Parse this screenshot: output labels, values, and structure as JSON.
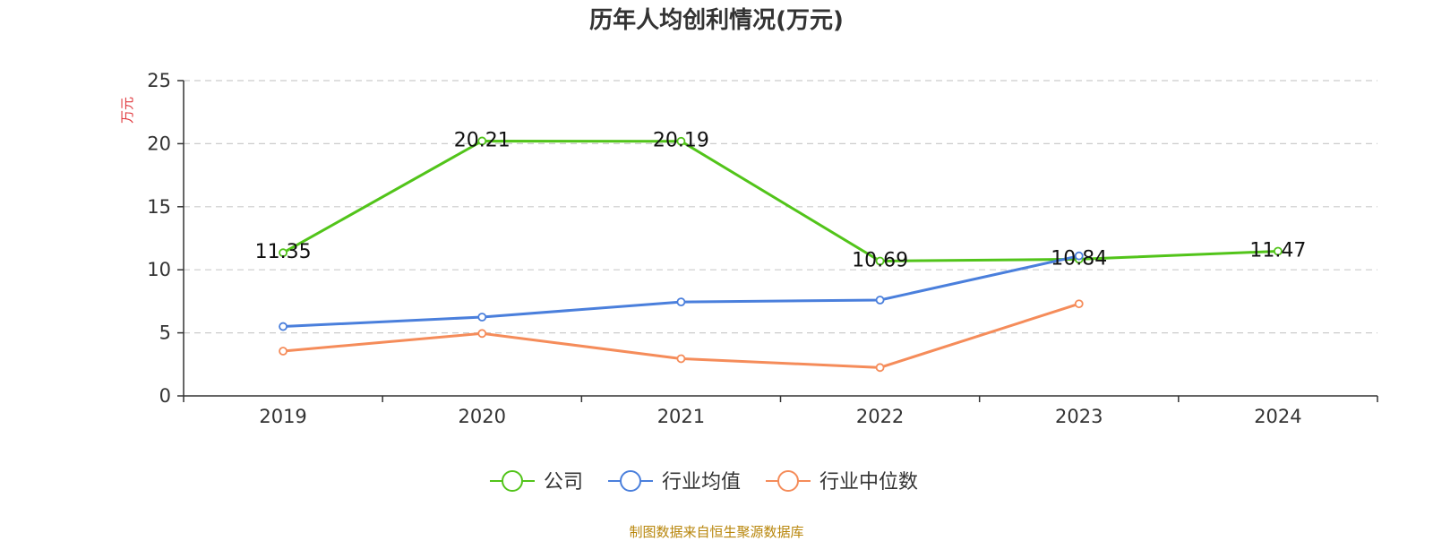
{
  "title": "历年人均创利情况(万元)",
  "source": "制图数据来自恒生聚源数据库",
  "chart_data": {
    "type": "line",
    "title": "历年人均创利情况(万元)",
    "ylabel": "万元",
    "xlabel": "",
    "categories": [
      "2019",
      "2020",
      "2021",
      "2022",
      "2023",
      "2024"
    ],
    "ylim": [
      0,
      25
    ],
    "yticks": [
      0,
      5,
      10,
      15,
      20,
      25
    ],
    "grid": true,
    "legend_position": "bottom",
    "series": [
      {
        "name": "公司",
        "color": "#52c41a",
        "values": [
          11.35,
          20.21,
          20.19,
          10.69,
          10.84,
          11.47
        ],
        "labels": [
          "11.35",
          "20.21",
          "20.19",
          "10.69",
          "10.84",
          "11.47"
        ]
      },
      {
        "name": "行业均值",
        "color": "#4a7fdc",
        "values": [
          5.5,
          6.25,
          7.45,
          7.6,
          11.1,
          null
        ]
      },
      {
        "name": "行业中位数",
        "color": "#f58c5a",
        "values": [
          3.55,
          4.95,
          2.95,
          2.25,
          7.3,
          null
        ]
      }
    ]
  }
}
